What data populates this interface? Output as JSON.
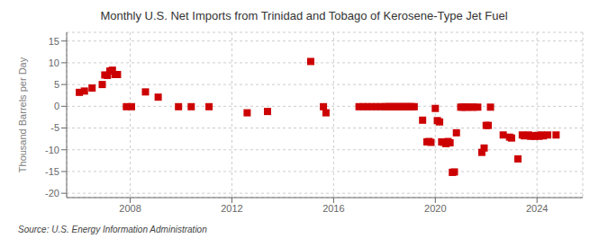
{
  "chart_data": {
    "type": "scatter",
    "title": "Monthly U.S. Net Imports from Trinidad and Tobago of Kerosene-Type Jet Fuel",
    "y_label": "Thousand Barrels per Day",
    "annotation": "Source: U.S. Energy Information Administration",
    "color": "#cc0000",
    "marker": "square",
    "grid": true,
    "xlim": [
      2005.5,
      2025.8
    ],
    "ylim": [
      -21,
      17
    ],
    "xticks": [
      2008,
      2012,
      2016,
      2020,
      2024
    ],
    "yticks": [
      -20,
      -15,
      -10,
      -5,
      0,
      5,
      10,
      15
    ],
    "x": [
      2006.0,
      2006.2,
      2006.5,
      2006.9,
      2007.0,
      2007.1,
      2007.2,
      2007.3,
      2007.4,
      2007.5,
      2007.85,
      2008.05,
      2008.6,
      2009.1,
      2009.9,
      2010.4,
      2011.1,
      2012.6,
      2013.4,
      2015.1,
      2015.6,
      2015.7,
      2017.0,
      2017.17,
      2017.33,
      2017.5,
      2017.67,
      2017.83,
      2018.0,
      2018.08,
      2018.17,
      2018.25,
      2018.33,
      2018.42,
      2018.5,
      2018.58,
      2018.67,
      2018.75,
      2018.83,
      2018.92,
      2019.0,
      2019.08,
      2019.17,
      2019.5,
      2019.67,
      2019.75,
      2019.83,
      2020.0,
      2020.08,
      2020.17,
      2020.25,
      2020.33,
      2020.42,
      2020.5,
      2020.58,
      2020.67,
      2020.75,
      2020.83,
      2021.0,
      2021.08,
      2021.17,
      2021.25,
      2021.42,
      2021.5,
      2021.67,
      2021.83,
      2021.92,
      2022.0,
      2022.08,
      2022.17,
      2022.67,
      2022.92,
      2023.0,
      2023.25,
      2023.42,
      2023.5,
      2023.67,
      2023.75,
      2023.83,
      2023.92,
      2024.0,
      2024.08,
      2024.17,
      2024.25,
      2024.42,
      2024.75
    ],
    "values": [
      3.2,
      3.5,
      4.2,
      5.0,
      7.2,
      7.1,
      8.1,
      8.3,
      7.3,
      7.3,
      -0.1,
      -0.1,
      3.3,
      2.1,
      -0.1,
      -0.1,
      -0.1,
      -1.5,
      -1.2,
      10.3,
      -0.1,
      -1.5,
      -0.1,
      -0.1,
      -0.1,
      -0.1,
      -0.1,
      -0.1,
      -0.1,
      -0.1,
      -0.1,
      -0.1,
      -0.1,
      -0.1,
      -0.1,
      -0.1,
      -0.1,
      -0.1,
      -0.1,
      -0.1,
      -0.1,
      -0.1,
      -0.1,
      -3.2,
      -8.2,
      -8.1,
      -8.3,
      -0.5,
      -3.3,
      -3.6,
      -8.2,
      -8.3,
      -8.6,
      -8.1,
      -8.4,
      -15.2,
      -15.1,
      -6.1,
      -0.2,
      -0.2,
      -0.2,
      -0.2,
      -0.2,
      -0.2,
      -0.2,
      -10.6,
      -9.6,
      -4.4,
      -4.4,
      -0.2,
      -6.6,
      -7.1,
      -7.3,
      -12.1,
      -6.6,
      -6.8,
      -6.6,
      -6.9,
      -6.8,
      -6.9,
      -6.7,
      -6.9,
      -6.6,
      -6.8,
      -6.6,
      -6.6
    ]
  }
}
